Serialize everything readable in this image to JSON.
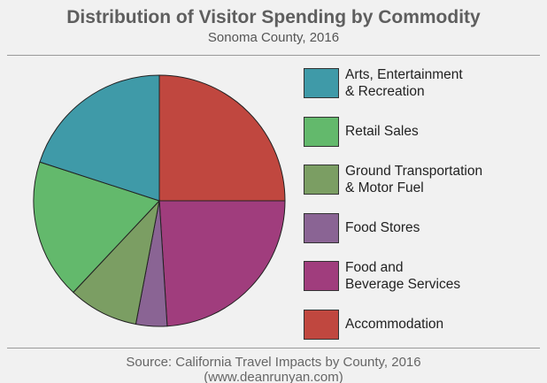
{
  "chart_data": {
    "type": "pie",
    "title": "Distribution of Visitor Spending by Commodity",
    "subtitle": "Sonoma County, 2016",
    "source": "Source: California Travel Impacts by County, 2016\n(www.deanrunyan.com)",
    "legend": "right",
    "series": [
      {
        "name": "Accommodation",
        "color": "#c0473f",
        "values": [
          25
        ]
      },
      {
        "name": "Food and\nBeverage Services",
        "color": "#a03d7d",
        "values": [
          24
        ]
      },
      {
        "name": "Food Stores",
        "color": "#8a6494",
        "values": [
          4
        ]
      },
      {
        "name": "Ground Transportation\n& Motor Fuel",
        "color": "#7b9e63",
        "values": [
          9
        ]
      },
      {
        "name": "Retail Sales",
        "color": "#63b96c",
        "values": [
          18
        ]
      },
      {
        "name": "Arts, Entertainment\n& Recreation",
        "color": "#3f9aa8",
        "values": [
          20
        ]
      }
    ]
  }
}
